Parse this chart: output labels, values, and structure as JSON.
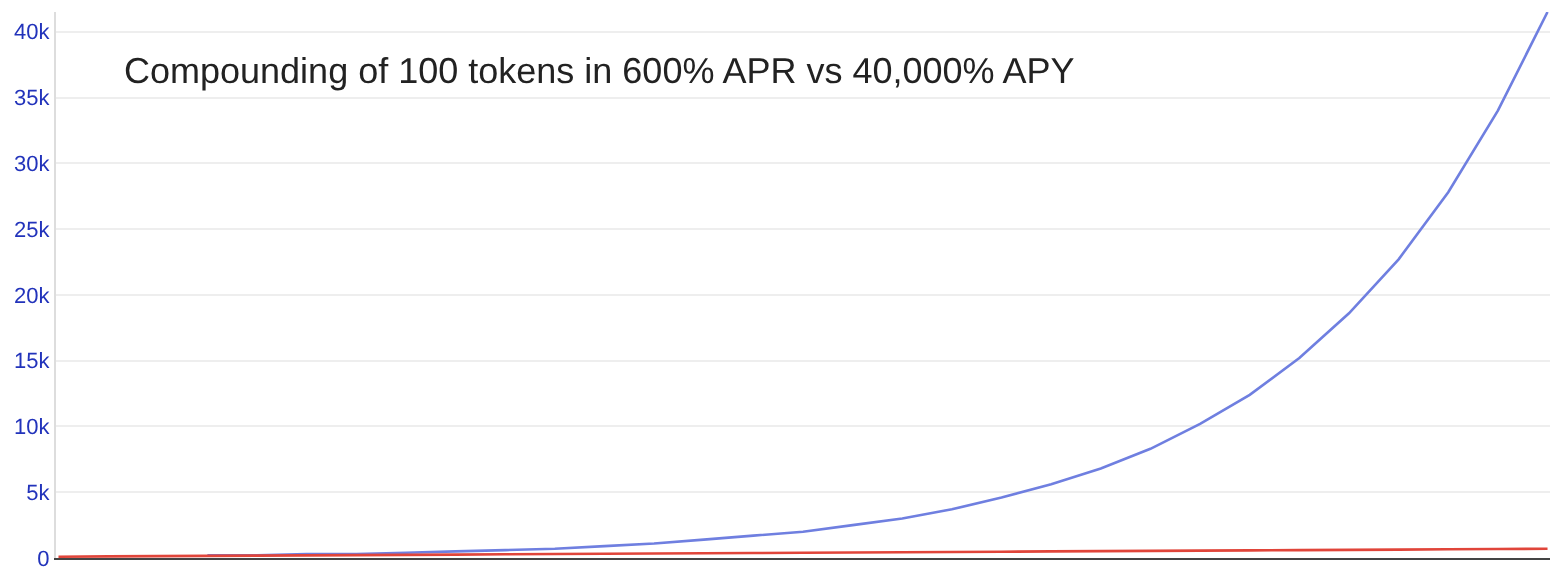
{
  "chart_data": {
    "type": "line",
    "title": "Compounding of 100 tokens in 600% APR vs 40,000% APY",
    "categories": [
      null,
      null,
      null,
      null,
      null,
      null,
      null,
      null,
      null,
      null,
      null,
      null,
      null,
      null,
      null,
      null,
      null,
      null,
      null,
      null,
      null,
      null,
      null,
      null,
      null,
      null,
      null,
      null,
      null,
      null,
      null
    ],
    "series": [
      {
        "color": "#6f7fe0",
        "values": [
          null,
          null,
          null,
          200,
          200,
          300,
          300,
          400,
          500,
          600,
          700,
          900,
          1100,
          1400,
          1700,
          2000,
          2500,
          3000,
          3700,
          4600,
          5600,
          6800,
          8300,
          10200,
          12400,
          15200,
          18600,
          22700,
          27800,
          34000,
          41500
        ]
      },
      {
        "color": "#e0453a",
        "values": [
          100,
          120,
          140,
          160,
          180,
          200,
          220,
          240,
          260,
          280,
          300,
          320,
          340,
          360,
          380,
          400,
          420,
          440,
          460,
          480,
          500,
          520,
          540,
          560,
          580,
          600,
          620,
          640,
          660,
          680,
          700
        ]
      }
    ],
    "ylim": [
      0,
      41500
    ],
    "yticks": [
      {
        "value": 0,
        "label": "0"
      },
      {
        "value": 5000,
        "label": "5k"
      },
      {
        "value": 10000,
        "label": "10k"
      },
      {
        "value": 15000,
        "label": "15k"
      },
      {
        "value": 20000,
        "label": "20k"
      },
      {
        "value": 25000,
        "label": "25k"
      },
      {
        "value": 30000,
        "label": "30k"
      },
      {
        "value": 35000,
        "label": "35k"
      },
      {
        "value": 40000,
        "label": "40k"
      }
    ],
    "grid": "y",
    "marker": "none",
    "line_style": "solid"
  }
}
